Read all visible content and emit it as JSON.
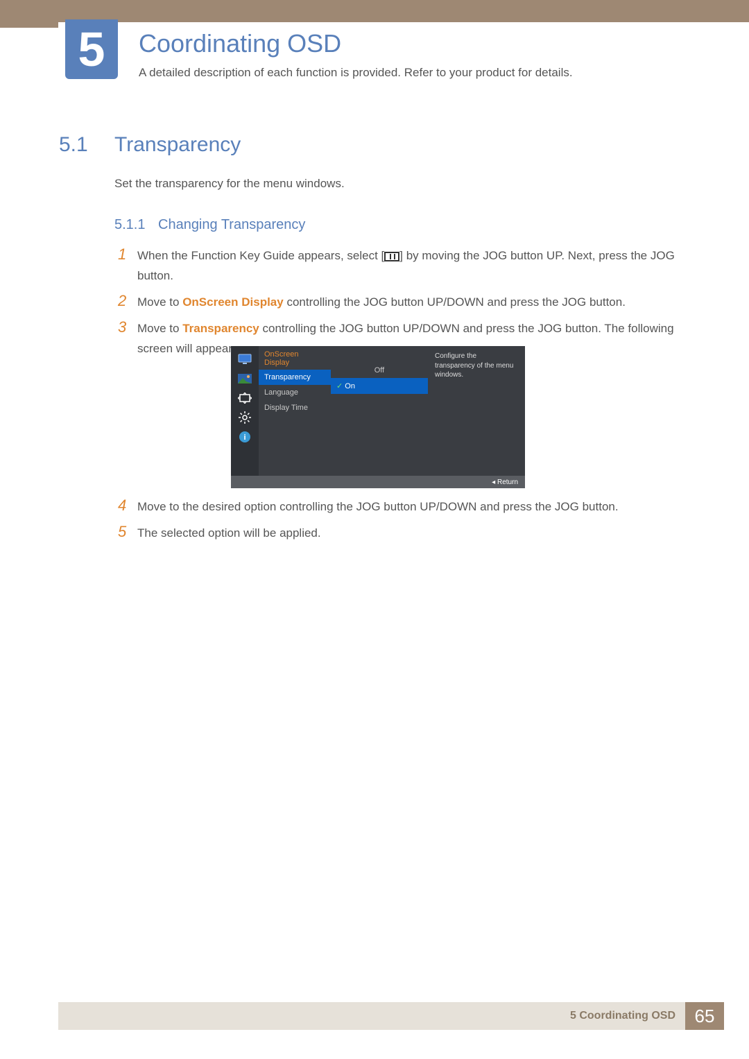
{
  "chapter": {
    "number": "5",
    "title": "Coordinating OSD",
    "subtitle": "A detailed description of each function is provided. Refer to your product for details."
  },
  "section": {
    "number": "5.1",
    "title": "Transparency",
    "description": "Set the transparency for the menu windows."
  },
  "subsection": {
    "number": "5.1.1",
    "title": "Changing Transparency"
  },
  "steps_before": [
    {
      "n": "1",
      "html": "When the Function Key Guide appears, select [<span class='menu-icon' data-name='menu-button-icon' data-interactable='false'></span>] by moving the JOG button UP. Next, press the JOG button."
    },
    {
      "n": "2",
      "html": "Move to <span class='hl'>OnScreen Display</span> controlling the JOG button UP/DOWN and press the JOG button."
    },
    {
      "n": "3",
      "html": "Move to <span class='hl'>Transparency</span> controlling the JOG button UP/DOWN and press the JOG button. The following screen will appear."
    }
  ],
  "steps_after": [
    {
      "n": "4",
      "html": "Move to the desired option controlling the JOG button UP/DOWN and press the JOG button."
    },
    {
      "n": "5",
      "html": "The selected option will be applied."
    }
  ],
  "osd": {
    "header": "OnScreen Display",
    "menu": [
      {
        "label": "Transparency",
        "selected": true
      },
      {
        "label": "Language",
        "selected": false
      },
      {
        "label": "Display Time",
        "selected": false
      }
    ],
    "options": [
      {
        "label": "Off",
        "selected": false
      },
      {
        "label": "On",
        "selected": true
      }
    ],
    "help": "Configure the transparency of the menu windows.",
    "return": "Return",
    "colors": {
      "bg": "#3a3d42",
      "iconcol_bg": "#2e3136",
      "selected_bg": "#0a61c0",
      "header_color": "#e0862f",
      "footer_bg": "#5a5d62"
    }
  },
  "footer": {
    "text": "5 Coordinating OSD",
    "page": "65"
  },
  "palette": {
    "brown": "#9e8873",
    "blue": "#5980ba",
    "orange": "#e0862f",
    "footer_bg": "#e6e1d9",
    "body_text": "#555555"
  }
}
